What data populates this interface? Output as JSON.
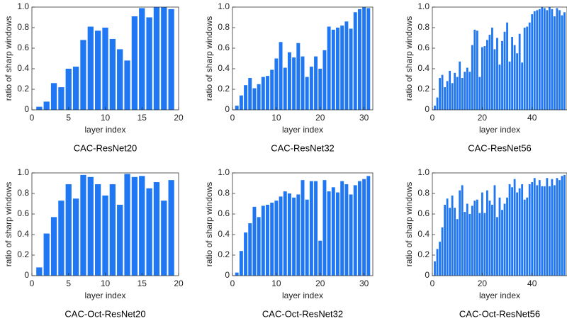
{
  "chart_data": [
    {
      "type": "bar",
      "title": "CAC-ResNet20",
      "x_label": "layer index",
      "y_label": "ratio of sharp windows",
      "color": "#1f77f4",
      "x": [
        1,
        2,
        3,
        4,
        5,
        6,
        7,
        8,
        9,
        10,
        11,
        12,
        13,
        14,
        15,
        16,
        17,
        18,
        19
      ],
      "values": [
        0.03,
        0.08,
        0.26,
        0.22,
        0.4,
        0.42,
        0.68,
        0.81,
        0.77,
        0.8,
        0.69,
        0.59,
        0.48,
        0.91,
        0.99,
        0.9,
        1.0,
        1.0,
        0.98
      ],
      "xlim": [
        0,
        20
      ],
      "xticks": [
        0,
        5,
        10,
        15,
        20
      ],
      "ylim": [
        0,
        1
      ],
      "yticks": [
        0,
        0.2,
        0.4,
        0.6,
        0.8,
        {
          "value": 1,
          "label": "1.0"
        }
      ]
    },
    {
      "type": "bar",
      "title": "CAC-ResNet32",
      "x_label": "layer index",
      "y_label": "ratio of sharp windows",
      "color": "#1f77f4",
      "x": [
        1,
        2,
        3,
        4,
        5,
        6,
        7,
        8,
        9,
        10,
        11,
        12,
        13,
        14,
        15,
        16,
        17,
        18,
        19,
        20,
        21,
        22,
        23,
        24,
        25,
        26,
        27,
        28,
        29,
        30,
        31
      ],
      "values": [
        0.04,
        0.14,
        0.24,
        0.31,
        0.21,
        0.25,
        0.32,
        0.33,
        0.39,
        0.5,
        0.66,
        0.41,
        0.56,
        0.51,
        0.65,
        0.52,
        0.32,
        0.42,
        0.52,
        0.4,
        0.58,
        0.81,
        0.78,
        0.8,
        0.82,
        0.86,
        0.79,
        0.95,
        0.98,
        1.0,
        0.99
      ],
      "xlim": [
        0,
        32
      ],
      "xticks": [
        0,
        10,
        20,
        30
      ],
      "ylim": [
        0,
        1
      ],
      "yticks": [
        0,
        0.2,
        0.4,
        0.6,
        0.8,
        {
          "value": 1,
          "label": "1.0"
        }
      ]
    },
    {
      "type": "bar",
      "title": "CAC-ResNet56",
      "x_label": "layer index",
      "y_label": "ratio of sharp windows",
      "color": "#1f77f4",
      "x": [
        1,
        2,
        3,
        4,
        5,
        6,
        7,
        8,
        9,
        10,
        11,
        12,
        13,
        14,
        15,
        16,
        17,
        18,
        19,
        20,
        21,
        22,
        23,
        24,
        25,
        26,
        27,
        28,
        29,
        30,
        31,
        32,
        33,
        34,
        35,
        36,
        37,
        38,
        39,
        40,
        41,
        42,
        43,
        44,
        45,
        46,
        47,
        48,
        49,
        50,
        51,
        52,
        53
      ],
      "values": [
        0.04,
        0.12,
        0.31,
        0.34,
        0.22,
        0.28,
        0.38,
        0.26,
        0.36,
        0.32,
        0.47,
        0.31,
        0.37,
        0.41,
        0.37,
        0.63,
        0.78,
        0.77,
        0.32,
        0.61,
        0.62,
        0.68,
        0.73,
        0.8,
        0.59,
        0.7,
        0.44,
        0.67,
        0.76,
        0.85,
        0.47,
        0.71,
        0.63,
        0.55,
        0.74,
        0.46,
        0.8,
        0.81,
        0.85,
        0.93,
        0.96,
        0.97,
        0.98,
        1.0,
        0.99,
        0.97,
        1.0,
        0.98,
        0.91,
        0.99,
        0.97,
        0.92,
        0.95
      ],
      "xlim": [
        0,
        54
      ],
      "xticks": [
        0,
        20,
        40
      ],
      "ylim": [
        0,
        1
      ],
      "yticks": [
        0,
        0.2,
        0.4,
        0.6,
        0.8,
        {
          "value": 1,
          "label": "1.0"
        }
      ]
    },
    {
      "type": "bar",
      "title": "CAC-Oct-ResNet20",
      "x_label": "layer index",
      "y_label": "ratio of sharp windows",
      "color": "#1f77f4",
      "x": [
        1,
        2,
        3,
        4,
        5,
        6,
        7,
        8,
        9,
        10,
        11,
        12,
        13,
        14,
        15,
        16,
        17,
        18,
        19
      ],
      "values": [
        0.08,
        0.41,
        0.57,
        0.73,
        0.89,
        0.75,
        0.98,
        0.96,
        0.89,
        0.78,
        0.89,
        0.69,
        0.99,
        0.96,
        0.97,
        0.85,
        0.91,
        0.73,
        0.93
      ],
      "xlim": [
        0,
        20
      ],
      "xticks": [
        0,
        5,
        10,
        15,
        20
      ],
      "ylim": [
        0,
        1
      ],
      "yticks": [
        0,
        0.2,
        0.4,
        0.6,
        0.8,
        {
          "value": 1,
          "label": "1.0"
        }
      ]
    },
    {
      "type": "bar",
      "title": "CAC-Oct-ResNet32",
      "x_label": "layer index",
      "y_label": "ratio of sharp windows",
      "color": "#1f77f4",
      "x": [
        1,
        2,
        3,
        4,
        5,
        6,
        7,
        8,
        9,
        10,
        11,
        12,
        13,
        14,
        15,
        16,
        17,
        18,
        19,
        20,
        21,
        22,
        23,
        24,
        25,
        26,
        27,
        28,
        29,
        30,
        31
      ],
      "values": [
        0.03,
        0.24,
        0.42,
        0.51,
        0.67,
        0.57,
        0.68,
        0.69,
        0.71,
        0.73,
        0.77,
        0.82,
        0.8,
        0.76,
        0.79,
        0.93,
        0.74,
        0.92,
        0.92,
        0.34,
        0.93,
        0.82,
        0.86,
        0.81,
        0.92,
        0.89,
        0.79,
        0.88,
        0.92,
        0.94,
        0.97
      ],
      "xlim": [
        0,
        32
      ],
      "xticks": [
        0,
        10,
        20,
        30
      ],
      "ylim": [
        0,
        1
      ],
      "yticks": [
        0,
        0.2,
        0.4,
        0.6,
        0.8,
        {
          "value": 1,
          "label": "1.0"
        }
      ]
    },
    {
      "type": "bar",
      "title": "CAC-Oct-ResNet56",
      "x_label": "layer index",
      "y_label": "ratio of sharp windows",
      "color": "#1f77f4",
      "x": [
        1,
        2,
        3,
        4,
        5,
        6,
        7,
        8,
        9,
        10,
        11,
        12,
        13,
        14,
        15,
        16,
        17,
        18,
        19,
        20,
        21,
        22,
        23,
        24,
        25,
        26,
        27,
        28,
        29,
        30,
        31,
        32,
        33,
        34,
        35,
        36,
        37,
        38,
        39,
        40,
        41,
        42,
        43,
        44,
        45,
        46,
        47,
        48,
        49,
        50,
        51,
        52,
        53
      ],
      "values": [
        0.14,
        0.26,
        0.33,
        0.47,
        0.69,
        0.75,
        0.66,
        0.78,
        0.66,
        0.55,
        0.83,
        0.88,
        0.62,
        0.7,
        0.6,
        0.68,
        0.73,
        0.74,
        0.61,
        0.81,
        0.61,
        0.83,
        0.73,
        0.69,
        0.88,
        0.57,
        0.76,
        0.64,
        0.7,
        0.76,
        0.89,
        0.86,
        0.94,
        0.81,
        0.85,
        0.89,
        0.74,
        0.76,
        0.89,
        0.91,
        0.95,
        0.88,
        0.93,
        0.87,
        0.87,
        0.95,
        0.87,
        0.94,
        0.88,
        0.95,
        0.93,
        0.97,
        0.98
      ],
      "xlim": [
        0,
        54
      ],
      "xticks": [
        0,
        20,
        40
      ],
      "ylim": [
        0,
        1
      ],
      "yticks": [
        0,
        0.2,
        0.4,
        0.6,
        0.8,
        {
          "value": 1,
          "label": "1.0"
        }
      ]
    }
  ]
}
